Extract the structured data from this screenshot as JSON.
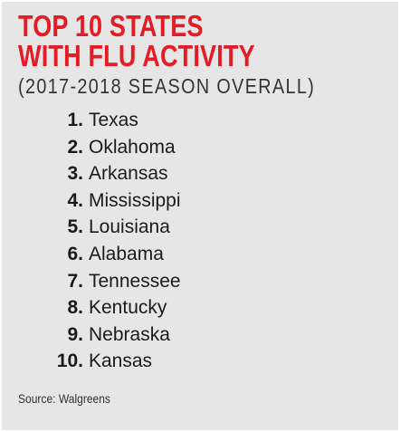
{
  "title_lines": [
    "TOP 10 STATES",
    "WITH FLU ACTIVITY"
  ],
  "subtitle": "(2017-2018 SEASON OVERALL)",
  "items": [
    {
      "rank": "1.",
      "state": "Texas"
    },
    {
      "rank": "2.",
      "state": "Oklahoma"
    },
    {
      "rank": "3.",
      "state": "Arkansas"
    },
    {
      "rank": "4.",
      "state": "Mississippi"
    },
    {
      "rank": "5.",
      "state": "Louisiana"
    },
    {
      "rank": "6.",
      "state": "Alabama"
    },
    {
      "rank": "7.",
      "state": "Tennessee"
    },
    {
      "rank": "8.",
      "state": "Kentucky"
    },
    {
      "rank": "9.",
      "state": "Nebraska"
    },
    {
      "rank": "10.",
      "state": "Kansas"
    }
  ],
  "source": "Source: Walgreens",
  "colors": {
    "title": "#e31c25",
    "background": "#e6e6e6",
    "text": "#1a1a1a"
  }
}
